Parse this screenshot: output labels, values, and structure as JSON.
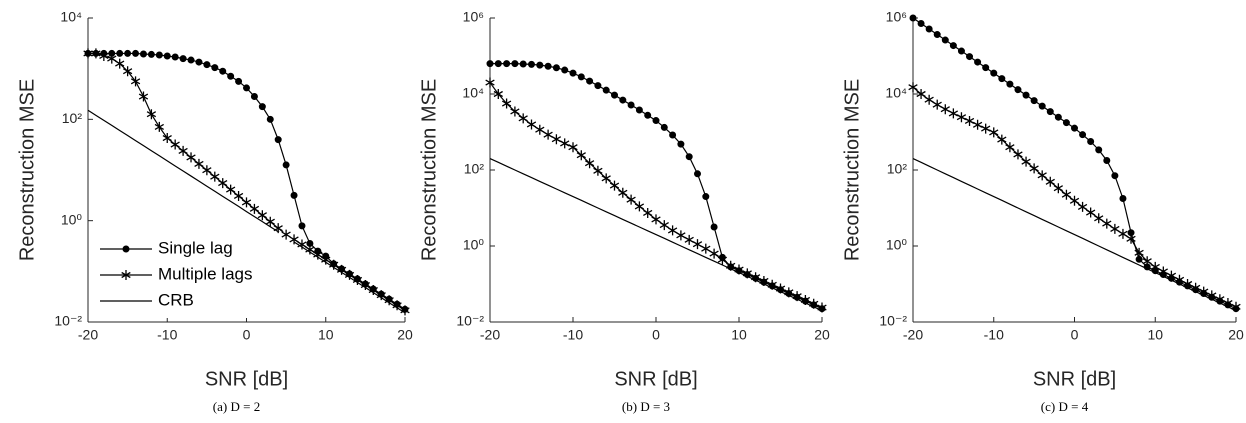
{
  "chart_data": [
    {
      "type": "line",
      "yscale": "log",
      "caption": "(a) D = 2",
      "xlabel": "SNR [dB]",
      "ylabel": "Reconstruction MSE",
      "legend": "lower left",
      "x": [
        -20,
        -19,
        -18,
        -17,
        -16,
        -15,
        -14,
        -13,
        -12,
        -11,
        -10,
        -9,
        -8,
        -7,
        -6,
        -5,
        -4,
        -3,
        -2,
        -1,
        0,
        1,
        2,
        3,
        4,
        5,
        6,
        7,
        8,
        9,
        10,
        11,
        12,
        13,
        14,
        15,
        16,
        17,
        18,
        19,
        20
      ],
      "xlim": [
        -20,
        20
      ],
      "xticks": [
        -20,
        -10,
        0,
        10,
        20
      ],
      "ylim": [
        0.01,
        10000
      ],
      "yticks": [
        {
          "value": 0.01,
          "label": "10⁻²"
        },
        {
          "value": 1,
          "label": "10⁰"
        },
        {
          "value": 100,
          "label": "10²"
        },
        {
          "value": 10000,
          "label": "10⁴"
        }
      ],
      "series": [
        {
          "name": "Single lag",
          "color": "#000000",
          "marker": "circle",
          "values": [
            2000,
            2000,
            2000,
            2000,
            2000,
            2000,
            2000,
            1950,
            1910,
            1860,
            1780,
            1700,
            1580,
            1480,
            1350,
            1200,
            1050,
            891,
            708,
            562,
            417,
            282,
            178,
            100,
            39.8,
            12.6,
            3.16,
            0.79,
            0.355,
            0.251,
            0.2,
            0.141,
            0.112,
            0.0891,
            0.0708,
            0.0562,
            0.0447,
            0.0355,
            0.0282,
            0.0224,
            0.0178
          ]
        },
        {
          "name": "Multiple lags",
          "color": "#000000",
          "marker": "star",
          "values": [
            2000,
            2000,
            1780,
            1580,
            1260,
            891,
            562,
            282,
            126,
            70.8,
            42.7,
            31.8,
            23.8,
            17.7,
            13.2,
            9.89,
            7.38,
            5.51,
            4.11,
            3.07,
            2.29,
            1.71,
            1.28,
            0.953,
            0.711,
            0.531,
            0.427,
            0.339,
            0.269,
            0.214,
            0.17,
            0.135,
            0.107,
            0.0851,
            0.0676,
            0.0537,
            0.0427,
            0.0339,
            0.0269,
            0.0214,
            0.017
          ]
        },
        {
          "name": "CRB",
          "color": "#000000",
          "values": [
            151,
            120,
            95.5,
            75.9,
            60.3,
            47.9,
            38,
            30.2,
            24,
            19.1,
            15.1,
            12,
            9.55,
            7.59,
            6.03,
            4.79,
            3.8,
            3.02,
            2.4,
            1.91,
            1.51,
            1.2,
            0.955,
            0.759,
            0.603,
            0.479,
            0.38,
            0.302,
            0.24,
            0.191,
            0.151,
            0.12,
            0.0955,
            0.0759,
            0.0603,
            0.0479,
            0.038,
            0.0302,
            0.024,
            0.0191,
            0.0151
          ]
        }
      ]
    },
    {
      "type": "line",
      "yscale": "log",
      "caption": "(b) D = 3",
      "xlabel": "SNR [dB]",
      "ylabel": "Reconstruction MSE",
      "x": [
        -20,
        -19,
        -18,
        -17,
        -16,
        -15,
        -14,
        -13,
        -12,
        -11,
        -10,
        -9,
        -8,
        -7,
        -6,
        -5,
        -4,
        -3,
        -2,
        -1,
        0,
        1,
        2,
        3,
        4,
        5,
        6,
        7,
        8,
        9,
        10,
        11,
        12,
        13,
        14,
        15,
        16,
        17,
        18,
        19,
        20
      ],
      "xlim": [
        -20,
        20
      ],
      "xticks": [
        -20,
        -10,
        0,
        10,
        20
      ],
      "ylim": [
        0.01,
        1000000
      ],
      "yticks": [
        {
          "value": 0.01,
          "label": "10⁻²"
        },
        {
          "value": 1,
          "label": "10⁰"
        },
        {
          "value": 100,
          "label": "10²"
        },
        {
          "value": 10000,
          "label": "10⁴"
        },
        {
          "value": 1000000,
          "label": "10⁶"
        }
      ],
      "series": [
        {
          "color": "#000000",
          "marker": "circle",
          "values": [
            63100,
            63100,
            63100,
            63100,
            61700,
            60300,
            57500,
            53700,
            49000,
            42700,
            35500,
            28200,
            21900,
            16600,
            12600,
            9330,
            6920,
            5130,
            3800,
            2750,
            2000,
            1320,
            832,
            479,
            224,
            79.4,
            20,
            3.16,
            0.501,
            0.282,
            0.224,
            0.178,
            0.141,
            0.112,
            0.0891,
            0.0708,
            0.0562,
            0.0447,
            0.0355,
            0.0282,
            0.0224
          ]
        },
        {
          "color": "#000000",
          "marker": "star",
          "values": [
            20000,
            10000,
            5620,
            3470,
            2290,
            1580,
            1150,
            851,
            646,
            501,
            398,
            245,
            151,
            95.5,
            60.3,
            38.9,
            25.1,
            16.6,
            11,
            7.41,
            5.01,
            3.55,
            2.57,
            1.91,
            1.45,
            1.12,
            0.851,
            0.631,
            0.437,
            0.302,
            0.24,
            0.191,
            0.151,
            0.12,
            0.0955,
            0.0759,
            0.0603,
            0.0479,
            0.038,
            0.0302,
            0.024
          ]
        },
        {
          "color": "#000000",
          "values": [
            200,
            159,
            126,
            100,
            79.4,
            63.1,
            50.1,
            39.8,
            31.6,
            25.1,
            20,
            15.9,
            12.6,
            10,
            7.94,
            6.31,
            5.01,
            3.98,
            3.16,
            2.51,
            2,
            1.59,
            1.26,
            1,
            0.794,
            0.631,
            0.501,
            0.398,
            0.316,
            0.251,
            0.2,
            0.159,
            0.126,
            0.1,
            0.0794,
            0.0631,
            0.0501,
            0.0398,
            0.0316,
            0.0251,
            0.02
          ]
        }
      ]
    },
    {
      "type": "line",
      "yscale": "log",
      "caption": "(c) D = 4",
      "xlabel": "SNR [dB]",
      "ylabel": "Reconstruction MSE",
      "x": [
        -20,
        -19,
        -18,
        -17,
        -16,
        -15,
        -14,
        -13,
        -12,
        -11,
        -10,
        -9,
        -8,
        -7,
        -6,
        -5,
        -4,
        -3,
        -2,
        -1,
        0,
        1,
        2,
        3,
        4,
        5,
        6,
        7,
        8,
        9,
        10,
        11,
        12,
        13,
        14,
        15,
        16,
        17,
        18,
        19,
        20
      ],
      "xlim": [
        -20,
        20
      ],
      "xticks": [
        -20,
        -10,
        0,
        10,
        20
      ],
      "ylim": [
        0.01,
        1000000
      ],
      "yticks": [
        {
          "value": 0.01,
          "label": "10⁻²"
        },
        {
          "value": 1,
          "label": "10⁰"
        },
        {
          "value": 100,
          "label": "10²"
        },
        {
          "value": 10000,
          "label": "10⁴"
        },
        {
          "value": 1000000,
          "label": "10⁶"
        }
      ],
      "series": [
        {
          "color": "#000000",
          "marker": "circle",
          "values": [
            1000000,
            716000,
            513000,
            367000,
            263000,
            188000,
            135000,
            96600,
            69200,
            49500,
            35500,
            25400,
            18200,
            13000,
            9330,
            6680,
            4790,
            3430,
            2450,
            1760,
            1260,
            851,
            562,
            339,
            178,
            70.8,
            17.8,
            2.24,
            0.447,
            0.282,
            0.224,
            0.178,
            0.141,
            0.112,
            0.0891,
            0.0708,
            0.0562,
            0.0447,
            0.0355,
            0.0282,
            0.0224
          ]
        },
        {
          "color": "#000000",
          "marker": "star",
          "values": [
            15100,
            10000,
            7080,
            5250,
            3980,
            3090,
            2450,
            1950,
            1550,
            1230,
            977,
            631,
            398,
            257,
            166,
            110,
            72.4,
            49,
            33.1,
            22.4,
            15.5,
            10.7,
            7.59,
            5.37,
            3.89,
            2.82,
            2.09,
            1.55,
            0.661,
            0.398,
            0.282,
            0.214,
            0.166,
            0.129,
            0.1,
            0.0794,
            0.0631,
            0.0501,
            0.0398,
            0.0316,
            0.0251
          ]
        },
        {
          "color": "#000000",
          "values": [
            200,
            159,
            126,
            100,
            79.4,
            63.1,
            50.1,
            39.8,
            31.6,
            25.1,
            20,
            15.9,
            12.6,
            10,
            7.94,
            6.31,
            5.01,
            3.98,
            3.16,
            2.51,
            2,
            1.59,
            1.26,
            1,
            0.794,
            0.631,
            0.501,
            0.398,
            0.316,
            0.251,
            0.2,
            0.159,
            0.126,
            0.1,
            0.0794,
            0.0631,
            0.0501,
            0.0398,
            0.0316,
            0.0251,
            0.02
          ]
        }
      ]
    }
  ]
}
